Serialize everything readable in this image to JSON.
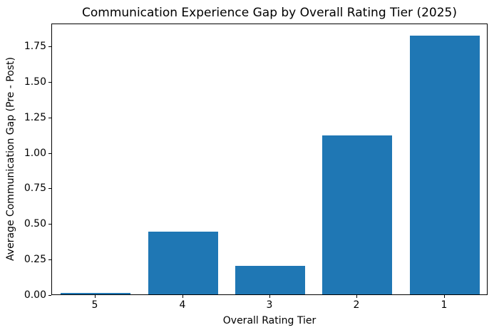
{
  "chart_data": {
    "type": "bar",
    "title": "Communication Experience Gap by Overall Rating Tier (2025)",
    "xlabel": "Overall Rating Tier",
    "ylabel": "Average Communication Gap (Pre - Post)",
    "categories": [
      "5",
      "4",
      "3",
      "2",
      "1"
    ],
    "values": [
      0.01,
      0.44,
      0.2,
      1.12,
      1.82
    ],
    "yticks": [
      0.0,
      0.25,
      0.5,
      0.75,
      1.0,
      1.25,
      1.5,
      1.75
    ],
    "ytick_labels": [
      "0.00",
      "0.25",
      "0.50",
      "0.75",
      "1.00",
      "1.25",
      "1.50",
      "1.75"
    ],
    "ylim": [
      0,
      1.91
    ],
    "bar_color": "#1f77b4",
    "bar_width_frac": 0.8,
    "grid": false,
    "legend": null
  }
}
